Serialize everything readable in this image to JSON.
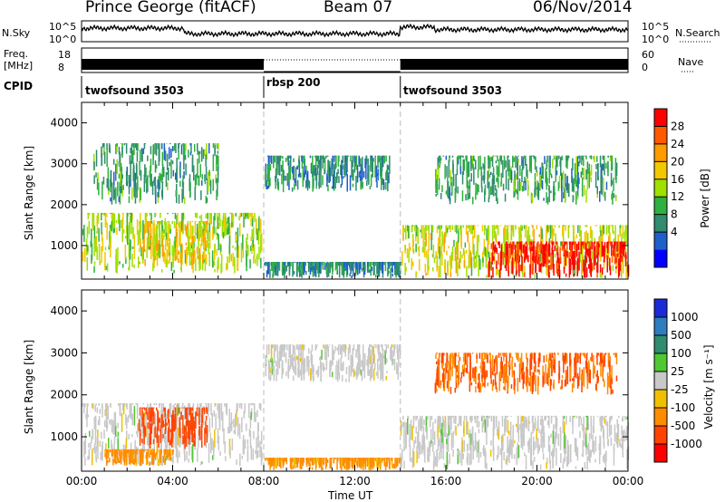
{
  "header": {
    "station": "Prince George (fitACF)",
    "beam": "Beam 07",
    "date": "06/Nov/2014"
  },
  "noise_panel": {
    "left_label": "N.Sky",
    "left_ticks": [
      "10^5",
      "10^0"
    ],
    "right_ticks": [
      "10^5",
      "10^0"
    ],
    "right_label": "N.Search"
  },
  "freq_panel": {
    "left_label_line1": "Freq.",
    "left_label_line2": "[MHz]",
    "left_ticks": [
      "18",
      "8"
    ],
    "right_ticks": [
      "60",
      "0"
    ],
    "right_label": "Nave"
  },
  "cpid_panel": {
    "label": "CPID",
    "programs": [
      {
        "name": "twofsound 3503",
        "start_hour": 0,
        "end_hour": 8
      },
      {
        "name": "rbsp 200",
        "start_hour": 8,
        "end_hour": 14
      },
      {
        "name": "twofsound 3503",
        "start_hour": 14,
        "end_hour": 24
      }
    ]
  },
  "x_axis": {
    "label": "Time UT",
    "ticks": [
      "00:00",
      "04:00",
      "08:00",
      "12:00",
      "16:00",
      "20:00",
      "00:00"
    ]
  },
  "power_colorbar": {
    "label": "Power [dB]",
    "ticks": [
      "28",
      "24",
      "20",
      "16",
      "12",
      "8",
      "4"
    ],
    "colors": [
      "#ff0000",
      "#ff5a00",
      "#ff9a00",
      "#f2c800",
      "#9fe000",
      "#2fb040",
      "#2f8c6e",
      "#1e5fc8",
      "#0000ff"
    ]
  },
  "velocity_colorbar": {
    "label": "Velocity [m s⁻¹]",
    "ticks": [
      "1000",
      "500",
      "100",
      "25",
      "-25",
      "-100",
      "-500",
      "-1000"
    ],
    "colors": [
      "#1a2bd6",
      "#2e7dbf",
      "#2f8c6e",
      "#50c832",
      "#c8c8c8",
      "#f0c000",
      "#ff8c00",
      "#ff4400",
      "#ff0000"
    ]
  },
  "chart_data": [
    {
      "type": "heatmap",
      "name_printed": "Power [dB]",
      "xlabel": "Time UT",
      "ylabel": "Slant Range [km]",
      "xlim_hours": [
        0,
        24
      ],
      "ylim_km": [
        180,
        4500
      ],
      "y_ticks": [
        1000,
        2000,
        3000,
        4000
      ],
      "regions": [
        {
          "t0": 0.0,
          "t1": 7.9,
          "r0": 300,
          "r1": 1800,
          "level_db": 14
        },
        {
          "t0": 0.5,
          "t1": 6.0,
          "r0": 2000,
          "r1": 3500,
          "level_db": 8
        },
        {
          "t0": 2.5,
          "t1": 5.5,
          "r0": 500,
          "r1": 1600,
          "level_db": 18
        },
        {
          "t0": 8.0,
          "t1": 14.0,
          "r0": 200,
          "r1": 600,
          "level_db": 6
        },
        {
          "t0": 8.0,
          "t1": 13.5,
          "r0": 2300,
          "r1": 3200,
          "level_db": 6
        },
        {
          "t0": 14.0,
          "t1": 24.0,
          "r0": 200,
          "r1": 1500,
          "level_db": 16
        },
        {
          "t0": 17.8,
          "t1": 24.0,
          "r0": 200,
          "r1": 1100,
          "level_db": 30
        },
        {
          "t0": 15.5,
          "t1": 23.5,
          "r0": 2000,
          "r1": 3200,
          "level_db": 8
        }
      ]
    },
    {
      "type": "heatmap",
      "name_printed": "Velocity [m s⁻¹]",
      "xlabel": "Time UT",
      "ylabel": "Slant Range [km]",
      "xlim_hours": [
        0,
        24
      ],
      "ylim_km": [
        180,
        4500
      ],
      "y_ticks": [
        1000,
        2000,
        3000,
        4000
      ],
      "regions": [
        {
          "t0": 0.0,
          "t1": 7.9,
          "r0": 300,
          "r1": 1800,
          "velocity": 0
        },
        {
          "t0": 2.5,
          "t1": 5.5,
          "r0": 700,
          "r1": 1700,
          "velocity": -500
        },
        {
          "t0": 1.0,
          "t1": 4.0,
          "r0": 300,
          "r1": 700,
          "velocity": -100
        },
        {
          "t0": 8.0,
          "t1": 14.0,
          "r0": 2300,
          "r1": 3200,
          "velocity": 0
        },
        {
          "t0": 8.0,
          "t1": 14.0,
          "r0": 200,
          "r1": 500,
          "velocity": -100
        },
        {
          "t0": 14.0,
          "t1": 24.0,
          "r0": 200,
          "r1": 1500,
          "velocity": 0
        },
        {
          "t0": 15.5,
          "t1": 23.5,
          "r0": 2000,
          "r1": 3000,
          "velocity": -300
        }
      ]
    }
  ]
}
